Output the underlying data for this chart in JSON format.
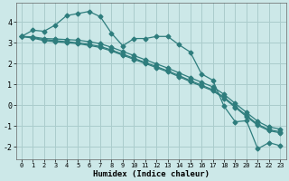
{
  "xlabel": "Humidex (Indice chaleur)",
  "ylabel": "",
  "bg_color": "#cce8e8",
  "grid_color": "#aacccc",
  "line_color": "#2e7d7d",
  "xlim": [
    -0.5,
    23.5
  ],
  "ylim": [
    -2.6,
    4.9
  ],
  "yticks": [
    -2,
    -1,
    0,
    1,
    2,
    3,
    4
  ],
  "xticks": [
    0,
    1,
    2,
    3,
    4,
    5,
    6,
    7,
    8,
    9,
    10,
    11,
    12,
    13,
    14,
    15,
    16,
    17,
    18,
    19,
    20,
    21,
    22,
    23
  ],
  "series1_y": [
    3.3,
    3.6,
    3.55,
    3.85,
    4.3,
    4.4,
    4.5,
    4.25,
    3.45,
    2.85,
    3.2,
    3.2,
    3.3,
    3.3,
    2.9,
    2.55,
    1.5,
    1.2,
    -0.05,
    -0.8,
    -0.75,
    -2.1,
    -1.8,
    -1.95
  ],
  "series2_y": [
    3.3,
    3.28,
    3.2,
    3.18,
    3.15,
    3.12,
    3.05,
    2.95,
    2.78,
    2.58,
    2.38,
    2.18,
    1.98,
    1.78,
    1.55,
    1.32,
    1.1,
    0.88,
    0.52,
    0.08,
    -0.35,
    -0.78,
    -1.05,
    -1.15
  ],
  "series3_y": [
    3.3,
    3.25,
    3.15,
    3.1,
    3.05,
    3.0,
    2.92,
    2.82,
    2.65,
    2.45,
    2.25,
    2.05,
    1.85,
    1.65,
    1.42,
    1.18,
    0.96,
    0.74,
    0.38,
    -0.06,
    -0.5,
    -0.92,
    -1.18,
    -1.28
  ],
  "series4_y": [
    3.3,
    3.22,
    3.1,
    3.05,
    3.0,
    2.95,
    2.87,
    2.77,
    2.6,
    2.4,
    2.2,
    2.0,
    1.8,
    1.6,
    1.37,
    1.13,
    0.91,
    0.69,
    0.33,
    -0.11,
    -0.55,
    -0.97,
    -1.23,
    -1.33
  ]
}
